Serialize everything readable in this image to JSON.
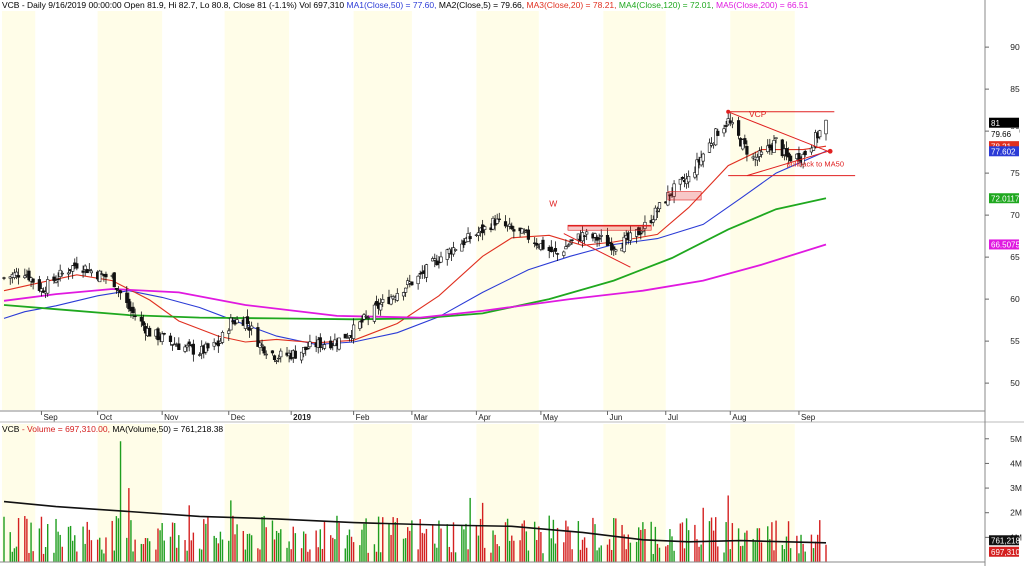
{
  "header": {
    "symbol": "VCB",
    "info": " - Daily 9/16/2019 00:00:00 Open 81.9, Hi 82.7, Lo 80.8, Close 81 (-1.1%) Vol 697,310",
    "ma1": " MA1(Close,50) = 77.60,",
    "ma2": " MA2(Close,5) = 79.66,",
    "ma3": " MA3(Close,20) = 78.21,",
    "ma4": " MA4(Close,120) = 72.01,",
    "ma5": " MA5(Close,200) = 66.51"
  },
  "volume_header": {
    "symbol": "VCB",
    "vol": " - Volume = 697,310.00,",
    "ma": " MA(Volume,50) = 761,218.38"
  },
  "colors": {
    "up": "#1f9e1f",
    "down": "#d42020",
    "ma1": "#2b3bd6",
    "ma3": "#e03020",
    "ma4": "#1fa81f",
    "ma5": "#e019e0",
    "vol_ma": "#111111",
    "band": "#fffde8"
  },
  "chart_data": {
    "type": "candlestick",
    "price_axis": {
      "ticks": [
        50,
        55,
        60,
        65,
        70,
        75,
        80,
        85,
        90
      ],
      "ylim": [
        46.8,
        94.3
      ]
    },
    "volume_axis": {
      "ticks": [
        "1M",
        "2M",
        "3M",
        "4M",
        "5M"
      ],
      "ylim": [
        0,
        5.6
      ]
    },
    "x_labels": [
      {
        "label": "Sep",
        "date": "2018-09-04"
      },
      {
        "label": "Oct",
        "date": "2018-10-01"
      },
      {
        "label": "Nov",
        "date": "2018-11-01"
      },
      {
        "label": "Dec",
        "date": "2018-12-03"
      },
      {
        "label": "2019",
        "date": "2019-01-02"
      },
      {
        "label": "Feb",
        "date": "2019-02-01"
      },
      {
        "label": "Mar",
        "date": "2019-03-01"
      },
      {
        "label": "Apr",
        "date": "2019-04-01"
      },
      {
        "label": "May",
        "date": "2019-05-02"
      },
      {
        "label": "Jun",
        "date": "2019-06-03"
      },
      {
        "label": "Jul",
        "date": "2019-07-01"
      },
      {
        "label": "Aug",
        "date": "2019-08-01"
      },
      {
        "label": "Sep",
        "date": "2019-09-03"
      }
    ],
    "date_range": [
      "2018-08-17",
      "2019-09-16"
    ],
    "close_path": [
      [
        "2018-08-17",
        62.5
      ],
      [
        "2018-08-27",
        63.3
      ],
      [
        "2018-09-04",
        61.1
      ],
      [
        "2018-09-11",
        62.5
      ],
      [
        "2018-09-21",
        64.2
      ],
      [
        "2018-10-01",
        63.0
      ],
      [
        "2018-10-08",
        62.5
      ],
      [
        "2018-10-16",
        58.9
      ],
      [
        "2018-10-26",
        56.0
      ],
      [
        "2018-11-01",
        55.4
      ],
      [
        "2018-11-09",
        54.5
      ],
      [
        "2018-11-19",
        53.7
      ],
      [
        "2018-11-28",
        54.6
      ],
      [
        "2018-12-04",
        57.3
      ],
      [
        "2018-12-11",
        57.6
      ],
      [
        "2018-12-18",
        54.6
      ],
      [
        "2018-12-26",
        53.2
      ],
      [
        "2019-01-04",
        53.5
      ],
      [
        "2019-01-14",
        54.6
      ],
      [
        "2019-01-24",
        55.0
      ],
      [
        "2019-02-01",
        56.3
      ],
      [
        "2019-02-12",
        58.9
      ],
      [
        "2019-02-22",
        60.9
      ],
      [
        "2019-03-05",
        62.7
      ],
      [
        "2019-03-14",
        64.9
      ],
      [
        "2019-03-25",
        66.7
      ],
      [
        "2019-04-04",
        68.2
      ],
      [
        "2019-04-10",
        69.3
      ],
      [
        "2019-04-18",
        68.2
      ],
      [
        "2019-04-26",
        67.4
      ],
      [
        "2019-05-06",
        65.8
      ],
      [
        "2019-05-10",
        65.3
      ],
      [
        "2019-05-16",
        66.7
      ],
      [
        "2019-05-22",
        67.6
      ],
      [
        "2019-05-31",
        67.1
      ],
      [
        "2019-06-06",
        66.4
      ],
      [
        "2019-06-13",
        67.0
      ],
      [
        "2019-06-20",
        68.4
      ],
      [
        "2019-06-27",
        70.6
      ],
      [
        "2019-07-04",
        72.9
      ],
      [
        "2019-07-12",
        74.3
      ],
      [
        "2019-07-19",
        77.3
      ],
      [
        "2019-07-26",
        80.0
      ],
      [
        "2019-07-31",
        81.2
      ],
      [
        "2019-08-06",
        78.8
      ],
      [
        "2019-08-12",
        76.7
      ],
      [
        "2019-08-16",
        77.1
      ],
      [
        "2019-08-23",
        78.8
      ],
      [
        "2019-08-28",
        76.8
      ],
      [
        "2019-09-05",
        77.1
      ],
      [
        "2019-09-10",
        78.8
      ],
      [
        "2019-09-16",
        81.0
      ]
    ],
    "ma_series": [
      {
        "name": "MA1(Close,50)",
        "color_key": "ma1",
        "last_label": "77.602",
        "points": [
          [
            "2018-08-17",
            57.7
          ],
          [
            "2018-08-27",
            58.5
          ],
          [
            "2018-09-11",
            59.2
          ],
          [
            "2018-10-01",
            60.4
          ],
          [
            "2018-10-16",
            61.0
          ],
          [
            "2018-11-01",
            60.2
          ],
          [
            "2018-11-19",
            59.0
          ],
          [
            "2018-12-04",
            57.6
          ],
          [
            "2018-12-26",
            55.6
          ],
          [
            "2019-01-14",
            54.6
          ],
          [
            "2019-02-01",
            54.9
          ],
          [
            "2019-02-22",
            56.0
          ],
          [
            "2019-03-14",
            57.9
          ],
          [
            "2019-04-04",
            60.8
          ],
          [
            "2019-04-26",
            63.5
          ],
          [
            "2019-05-16",
            65.1
          ],
          [
            "2019-06-06",
            66.5
          ],
          [
            "2019-06-27",
            67.2
          ],
          [
            "2019-07-19",
            68.9
          ],
          [
            "2019-08-06",
            72.0
          ],
          [
            "2019-08-23",
            75.0
          ],
          [
            "2019-09-16",
            77.6
          ]
        ]
      },
      {
        "name": "MA3(Close,20)",
        "color_key": "ma3",
        "last_label": "78.21",
        "points": [
          [
            "2018-08-17",
            61.0
          ],
          [
            "2018-09-04",
            62.0
          ],
          [
            "2018-09-21",
            62.9
          ],
          [
            "2018-10-08",
            62.2
          ],
          [
            "2018-10-26",
            59.9
          ],
          [
            "2018-11-09",
            57.4
          ],
          [
            "2018-11-28",
            55.6
          ],
          [
            "2018-12-11",
            54.9
          ],
          [
            "2018-12-26",
            55.2
          ],
          [
            "2019-01-14",
            54.8
          ],
          [
            "2019-02-01",
            55.1
          ],
          [
            "2019-02-22",
            57.1
          ],
          [
            "2019-03-14",
            60.4
          ],
          [
            "2019-04-04",
            65.1
          ],
          [
            "2019-04-18",
            67.3
          ],
          [
            "2019-05-06",
            67.6
          ],
          [
            "2019-05-22",
            66.4
          ],
          [
            "2019-06-06",
            66.8
          ],
          [
            "2019-06-27",
            67.7
          ],
          [
            "2019-07-12",
            70.9
          ],
          [
            "2019-07-31",
            75.9
          ],
          [
            "2019-08-16",
            77.8
          ],
          [
            "2019-09-05",
            77.8
          ],
          [
            "2019-09-16",
            78.2
          ]
        ]
      },
      {
        "name": "MA4(Close,120)",
        "color_key": "ma4",
        "last_label": "72.0117",
        "points": [
          [
            "2018-08-17",
            59.3
          ],
          [
            "2018-09-11",
            58.8
          ],
          [
            "2018-10-16",
            58.1
          ],
          [
            "2018-11-19",
            57.8
          ],
          [
            "2018-12-26",
            57.7
          ],
          [
            "2019-02-01",
            57.6
          ],
          [
            "2019-03-05",
            57.7
          ],
          [
            "2019-04-04",
            58.3
          ],
          [
            "2019-05-06",
            60.0
          ],
          [
            "2019-06-06",
            62.2
          ],
          [
            "2019-07-04",
            64.9
          ],
          [
            "2019-07-31",
            68.3
          ],
          [
            "2019-08-23",
            70.7
          ],
          [
            "2019-09-16",
            72.0
          ]
        ]
      },
      {
        "name": "MA5(Close,200)",
        "color_key": "ma5",
        "last_label": "66.5075",
        "points": [
          [
            "2018-08-17",
            59.8
          ],
          [
            "2018-09-11",
            60.6
          ],
          [
            "2018-10-08",
            61.2
          ],
          [
            "2018-11-09",
            60.8
          ],
          [
            "2018-12-11",
            59.3
          ],
          [
            "2019-01-24",
            58.0
          ],
          [
            "2019-03-05",
            57.8
          ],
          [
            "2019-04-04",
            58.6
          ],
          [
            "2019-05-16",
            60.0
          ],
          [
            "2019-06-20",
            61.0
          ],
          [
            "2019-07-19",
            62.2
          ],
          [
            "2019-08-16",
            64.1
          ],
          [
            "2019-09-16",
            66.5
          ]
        ]
      }
    ],
    "volume": {
      "overall": 1.3,
      "spikes": [
        [
          "2018-10-12",
          4.9
        ],
        [
          "2018-10-16",
          3.0
        ],
        [
          "2018-11-14",
          2.3
        ],
        [
          "2018-12-04",
          2.5
        ],
        [
          "2019-03-29",
          2.6
        ],
        [
          "2019-04-04",
          2.4
        ],
        [
          "2019-07-31",
          2.7
        ],
        [
          "2019-07-19",
          2.2
        ],
        [
          "2019-09-13",
          1.7
        ],
        [
          "2019-09-16",
          0.7
        ]
      ],
      "ma_points": [
        [
          "2018-08-17",
          2.45
        ],
        [
          "2018-09-11",
          2.25
        ],
        [
          "2018-10-16",
          2.05
        ],
        [
          "2018-11-19",
          1.85
        ],
        [
          "2018-12-26",
          1.75
        ],
        [
          "2019-02-01",
          1.6
        ],
        [
          "2019-03-14",
          1.5
        ],
        [
          "2019-04-18",
          1.45
        ],
        [
          "2019-05-22",
          1.2
        ],
        [
          "2019-06-20",
          0.9
        ],
        [
          "2019-07-12",
          0.82
        ],
        [
          "2019-08-06",
          0.87
        ],
        [
          "2019-09-16",
          0.78
        ]
      ]
    },
    "annotations": {
      "w": "W",
      "vcp": "VCP",
      "pullback": "pullback to MA50"
    },
    "labels": {
      "close": "81",
      "ma2": "79.66",
      "ma3": "78.21",
      "vol_ma": "761,218",
      "vol": "697,310"
    }
  }
}
